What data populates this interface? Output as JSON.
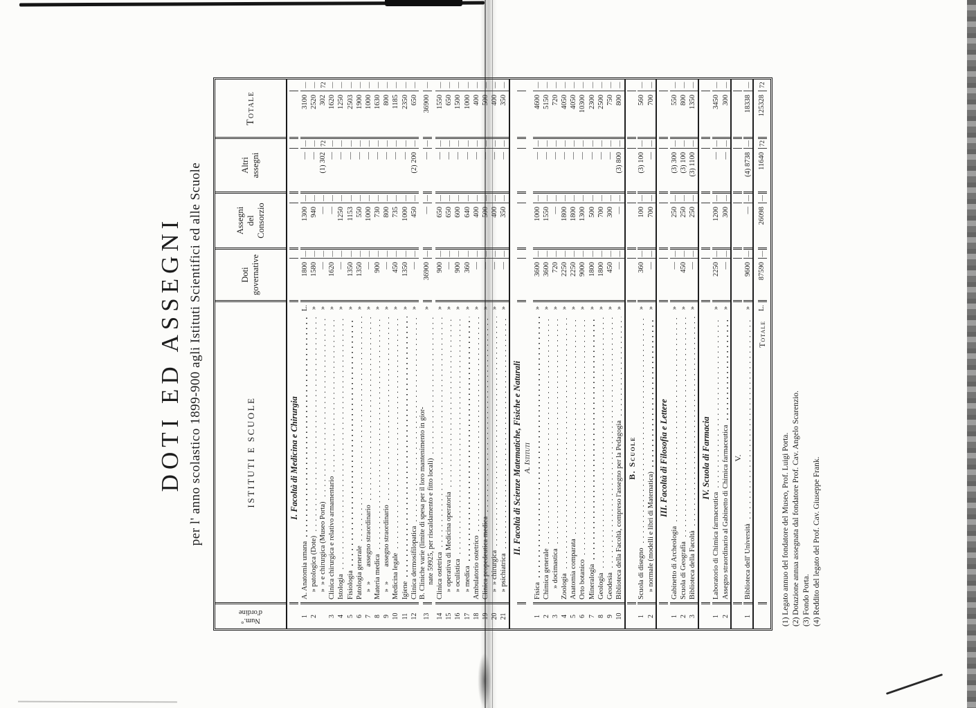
{
  "page": {
    "title": "DOTI ED ASSEGNI",
    "subtitle": "per l' anno scolastico 1899-900 agli Istituti Scientifici ed alle Scuole"
  },
  "table": {
    "headers": {
      "num": "Num.°\nd'ordine",
      "name": "ISTITUTI E SCUOLE",
      "doti": "Doti\ngovernative",
      "consorzio": "Assegni\ndel\nConsorzio",
      "altri": "Altri\nassegni",
      "totale": "Totale"
    },
    "sections": [
      {
        "heading": "I. Facoltà di Medicina e Chirurgia",
        "style": "italic",
        "separated": false,
        "rows": [
          {
            "num": "1",
            "name": "A. Anatomia umana",
            "l": "L.",
            "doti": [
              "1800",
              "—"
            ],
            "cons": [
              "1300",
              "—"
            ],
            "altri": [
              "—",
              "—"
            ],
            "tot": [
              "3100",
              "—"
            ]
          },
          {
            "num": "2",
            "name": " » patologica (Dote)",
            "l": "»",
            "doti": [
              "1580",
              "—"
            ],
            "cons": [
              "940",
              "—"
            ],
            "altri": [
              "—",
              "—"
            ],
            "tot": [
              "2520",
              "—"
            ]
          },
          {
            "num": "",
            "name": " » » e chirurgica (Museo Porta)",
            "l": "»",
            "doti": [
              "—",
              "—"
            ],
            "cons": [
              "—",
              "—"
            ],
            "altri": [
              "(1) 302",
              "72"
            ],
            "tot": [
              "302",
              "72"
            ]
          },
          {
            "num": "3",
            "name": "Clinica chirurgica e relativo armamentario",
            "l": "»",
            "doti": [
              "1620",
              "—"
            ],
            "cons": [
              "—",
              "—"
            ],
            "altri": [
              "—",
              "—"
            ],
            "tot": [
              "1620",
              "—"
            ]
          },
          {
            "num": "4",
            "name": "Istologia",
            "l": "»",
            "doti": [
              "—",
              "—"
            ],
            "cons": [
              "1250",
              "—"
            ],
            "altri": [
              "—",
              "—"
            ],
            "tot": [
              "1250",
              "—"
            ]
          },
          {
            "num": "5",
            "name": "Fisiologia",
            "l": "»",
            "doti": [
              "1350",
              "—"
            ],
            "cons": [
              "1153",
              "—"
            ],
            "altri": [
              "—",
              "—"
            ],
            "tot": [
              "2503",
              "—"
            ]
          },
          {
            "num": "6",
            "name": "Patologia generale",
            "l": "»",
            "doti": [
              "1350",
              "—"
            ],
            "cons": [
              "550",
              "—"
            ],
            "altri": [
              "—",
              "—"
            ],
            "tot": [
              "1900",
              "—"
            ]
          },
          {
            "num": "7",
            "name": " » »  assegno straordinario",
            "l": "»",
            "doti": [
              "—",
              "—"
            ],
            "cons": [
              "1000",
              "—"
            ],
            "altri": [
              "—",
              "—"
            ],
            "tot": [
              "1000",
              "—"
            ]
          },
          {
            "num": "8",
            "name": "Materia medica",
            "l": "»",
            "doti": [
              "900",
              "—"
            ],
            "cons": [
              "730",
              "—"
            ],
            "altri": [
              "—",
              "—"
            ],
            "tot": [
              "1630",
              "—"
            ]
          },
          {
            "num": "9",
            "name": " » »  assegno straordinario",
            "l": "»",
            "doti": [
              "—",
              "—"
            ],
            "cons": [
              "800",
              "—"
            ],
            "altri": [
              "—",
              "—"
            ],
            "tot": [
              "800",
              "—"
            ]
          },
          {
            "num": "10",
            "name": "Medicina legale",
            "l": "»",
            "doti": [
              "450",
              "—"
            ],
            "cons": [
              "735",
              "—"
            ],
            "altri": [
              "—",
              "—"
            ],
            "tot": [
              "1185",
              "—"
            ]
          },
          {
            "num": "11",
            "name": "Igiene",
            "l": "»",
            "doti": [
              "1350",
              "—"
            ],
            "cons": [
              "1000",
              "—"
            ],
            "altri": [
              "—",
              "—"
            ],
            "tot": [
              "2350",
              "—"
            ]
          },
          {
            "num": "12",
            "name": "Clinica dermosifilopatica",
            "l": "»",
            "doti": [
              "—",
              "—"
            ],
            "cons": [
              "450",
              "—"
            ],
            "altri": [
              "(2) 200",
              "—"
            ],
            "tot": [
              "650",
              "—"
            ]
          },
          {
            "num": "13",
            "name": "B. Cliniche varie (limite di spesa per il loro mantenimento in gior-",
            "name2": "  nate 59925, per riscaldamento e fitto locali)",
            "l": "»",
            "doti": [
              "36900",
              "—"
            ],
            "cons": [
              "—",
              "—"
            ],
            "altri": [
              "—",
              "—"
            ],
            "tot": [
              "36900",
              "—"
            ]
          },
          {
            "num": "14",
            "name": "Clinica ostetrica",
            "l": "»",
            "doti": [
              "900",
              "—"
            ],
            "cons": [
              "650",
              "—"
            ],
            "altri": [
              "—",
              "—"
            ],
            "tot": [
              "1550",
              "—"
            ]
          },
          {
            "num": "15",
            "name": " » operativa di Medicina operatoria",
            "l": "»",
            "doti": [
              "—",
              "—"
            ],
            "cons": [
              "650",
              "—"
            ],
            "altri": [
              "—",
              "—"
            ],
            "tot": [
              "650",
              "—"
            ]
          },
          {
            "num": "16",
            "name": " » oculistica",
            "l": "»",
            "doti": [
              "900",
              "—"
            ],
            "cons": [
              "600",
              "—"
            ],
            "altri": [
              "—",
              "—"
            ],
            "tot": [
              "1500",
              "—"
            ]
          },
          {
            "num": "17",
            "name": " » medica",
            "l": "»",
            "doti": [
              "360",
              "—"
            ],
            "cons": [
              "640",
              "—"
            ],
            "altri": [
              "—",
              "—"
            ],
            "tot": [
              "1000",
              "—"
            ]
          },
          {
            "num": "18",
            "name": "Ambulatorio ostetrico",
            "l": "»",
            "doti": [
              "—",
              "—"
            ],
            "cons": [
              "400",
              "—"
            ],
            "altri": [
              "—",
              "—"
            ],
            "tot": [
              "400",
              "—"
            ]
          },
          {
            "num": "19",
            "name": "Clinica propedeutica medica",
            "l": "»",
            "doti": [
              "—",
              "—"
            ],
            "cons": [
              "500",
              "—"
            ],
            "altri": [
              "—",
              "—"
            ],
            "tot": [
              "500",
              "—"
            ]
          },
          {
            "num": "20",
            "name": " » » chirurgica",
            "l": "»",
            "doti": [
              "—",
              "—"
            ],
            "cons": [
              "400",
              "—"
            ],
            "altri": [
              "—",
              "—"
            ],
            "tot": [
              "400",
              "—"
            ]
          },
          {
            "num": "21",
            "name": " » psichiatrica",
            "l": "»",
            "doti": [
              "—",
              "—"
            ],
            "cons": [
              "350",
              "—"
            ],
            "altri": [
              "—",
              "—"
            ],
            "tot": [
              "350",
              "—"
            ]
          }
        ]
      },
      {
        "heading": "II. Facoltà di Scienze Matematiche, Fisiche e Naturali",
        "subheading": "A. Istituti",
        "style": "italic",
        "separated": true,
        "rows": [
          {
            "num": "1",
            "name": "Fisica",
            "l": "»",
            "doti": [
              "3600",
              "—"
            ],
            "cons": [
              "1000",
              "—"
            ],
            "altri": [
              "—",
              "—"
            ],
            "tot": [
              "4600",
              "—"
            ]
          },
          {
            "num": "2",
            "name": "Chimica generale",
            "l": "»",
            "doti": [
              "3600",
              "—"
            ],
            "cons": [
              "1550",
              "—"
            ],
            "altri": [
              "—",
              "—"
            ],
            "tot": [
              "5150",
              "—"
            ]
          },
          {
            "num": "3",
            "name": "  » docimastica",
            "l": "»",
            "doti": [
              "720",
              "—"
            ],
            "cons": [
              "—",
              "—"
            ],
            "altri": [
              "—",
              "—"
            ],
            "tot": [
              "720",
              "—"
            ]
          },
          {
            "num": "4",
            "name": "Zoologia",
            "l": "»",
            "doti": [
              "2250",
              "—"
            ],
            "cons": [
              "1800",
              "—"
            ],
            "altri": [
              "—",
              "—"
            ],
            "tot": [
              "4050",
              "—"
            ]
          },
          {
            "num": "5",
            "name": "Anatomia comparata",
            "l": "»",
            "doti": [
              "2250",
              "—"
            ],
            "cons": [
              "1800",
              "—"
            ],
            "altri": [
              "—",
              "—"
            ],
            "tot": [
              "4050",
              "—"
            ]
          },
          {
            "num": "6",
            "name": "Orto botanico",
            "l": "»",
            "doti": [
              "9000",
              "—"
            ],
            "cons": [
              "1300",
              "—"
            ],
            "altri": [
              "—",
              "—"
            ],
            "tot": [
              "10300",
              "—"
            ]
          },
          {
            "num": "7",
            "name": "Mineralogia",
            "l": "»",
            "doti": [
              "1800",
              "—"
            ],
            "cons": [
              "500",
              "—"
            ],
            "altri": [
              "—",
              "—"
            ],
            "tot": [
              "2300",
              "—"
            ]
          },
          {
            "num": "8",
            "name": "Geologia",
            "l": "»",
            "doti": [
              "1800",
              "—"
            ],
            "cons": [
              "700",
              "—"
            ],
            "altri": [
              "—",
              "—"
            ],
            "tot": [
              "2500",
              "—"
            ]
          },
          {
            "num": "9",
            "name": "Geodesia",
            "l": "»",
            "doti": [
              "450",
              "—"
            ],
            "cons": [
              "300",
              "—"
            ],
            "altri": [
              "—",
              "—"
            ],
            "tot": [
              "750",
              "—"
            ]
          },
          {
            "num": "10",
            "name": "Biblioteca della Facoltà, compreso l'assegno per la Pedagogia",
            "l": "»",
            "doti": [
              "—",
              "—"
            ],
            "cons": [
              "—",
              "—"
            ],
            "altri": [
              "(3) 800",
              "—"
            ],
            "tot": [
              "800",
              "—"
            ]
          }
        ]
      },
      {
        "heading": "B. Scuole",
        "style": "caps",
        "separated": true,
        "rows": [
          {
            "num": "1",
            "name": "Scuola di disegno",
            "l": "»",
            "doti": [
              "360",
              "—"
            ],
            "cons": [
              "100",
              "—"
            ],
            "altri": [
              "(3) 100",
              "—"
            ],
            "tot": [
              "560",
              "—"
            ]
          },
          {
            "num": "2",
            "name": " » normale (modelli e libri di Matematica)",
            "l": "»",
            "doti": [
              "—",
              "—"
            ],
            "cons": [
              "700",
              "—"
            ],
            "altri": [
              "—",
              "—"
            ],
            "tot": [
              "700",
              "—"
            ]
          }
        ]
      },
      {
        "heading": "III. Facoltà di Filosofia e Lettere",
        "style": "italic",
        "separated": true,
        "rows": [
          {
            "num": "1",
            "name": "Gabinetto di Archeologia",
            "l": "»",
            "doti": [
              "—",
              "—"
            ],
            "cons": [
              "250",
              "—"
            ],
            "altri": [
              "(3) 300",
              "—"
            ],
            "tot": [
              "550",
              "—"
            ]
          },
          {
            "num": "2",
            "name": "Scuola di Geografia",
            "l": "»",
            "doti": [
              "450",
              "—"
            ],
            "cons": [
              "250",
              "—"
            ],
            "altri": [
              "(3) 100",
              "—"
            ],
            "tot": [
              "800",
              "—"
            ]
          },
          {
            "num": "3",
            "name": "Biblioteca della Facoltà",
            "l": "»",
            "doti": [
              "—",
              "—"
            ],
            "cons": [
              "250",
              "—"
            ],
            "altri": [
              "(3) 1100",
              "—"
            ],
            "tot": [
              "1350",
              "—"
            ]
          }
        ]
      },
      {
        "heading": "IV. Scuola di Farmacia",
        "style": "italic",
        "separated": true,
        "rows": [
          {
            "num": "1",
            "name": "Laboratorio di Chimica farmaceutica",
            "l": "»",
            "doti": [
              "2250",
              "—"
            ],
            "cons": [
              "1200",
              "—"
            ],
            "altri": [
              "—",
              "—"
            ],
            "tot": [
              "3450",
              "—"
            ]
          },
          {
            "num": "2",
            "name": "Assegno straordinario al Gabinetto di Chimica farmaceutica",
            "l": "»",
            "doti": [
              "—",
              "—"
            ],
            "cons": [
              "300",
              "—"
            ],
            "altri": [
              "—",
              "—"
            ],
            "tot": [
              "300",
              "—"
            ]
          }
        ]
      },
      {
        "heading": "V.",
        "style": "plain",
        "separated": true,
        "rows": [
          {
            "num": "1",
            "name": "Biblioteca dell' Università",
            "l": "»",
            "doti": [
              "9600",
              "—"
            ],
            "cons": [
              "—",
              "—"
            ],
            "altri": [
              "(4) 8738",
              "—"
            ],
            "tot": [
              "18338",
              "—"
            ]
          }
        ]
      }
    ],
    "total_row": {
      "label": "Totale",
      "lmark": "L.",
      "doti_lire": "87590",
      "doti_cents": "—",
      "consorzio_lire": "26098",
      "consorzio_cents": "—",
      "altri_lire": "11640",
      "altri_cents": "72",
      "totale_lire": "125328",
      "totale_cents": "72"
    }
  },
  "footnotes": [
    "(1) Legato annuo del fondatore del Museo, Prof. Luigi Porta.",
    "(2) Dotazione annua assegnata dal fondatore Prof. Cav. Angelo Scarenzio.",
    "(3) Fondo Porta.",
    "(4) Reddito del legato del Prof. Cav. Giuseppe Frank."
  ]
}
